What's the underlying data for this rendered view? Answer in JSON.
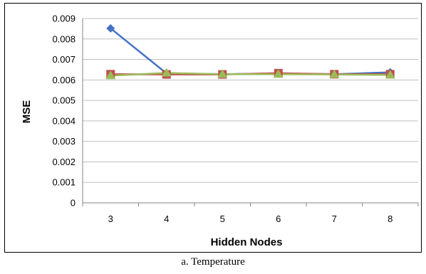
{
  "caption": "a. Temperature",
  "chart_data": {
    "type": "line",
    "title": "",
    "xlabel": "Hidden Nodes",
    "ylabel": "MSE",
    "categories": [
      "3",
      "4",
      "5",
      "6",
      "7",
      "8"
    ],
    "ylim": [
      0,
      0.009
    ],
    "yticks": [
      "0",
      "0.001",
      "0.002",
      "0.003",
      "0.004",
      "0.005",
      "0.006",
      "0.007",
      "0.008",
      "0.009"
    ],
    "grid": true,
    "legend": "none",
    "series": [
      {
        "color": "#4472C4",
        "marker": "diamond",
        "values": [
          0.00852,
          0.00632,
          0.00628,
          0.00631,
          0.00628,
          0.00637
        ]
      },
      {
        "color": "#C0504D",
        "marker": "square",
        "values": [
          0.00628,
          0.00627,
          0.00627,
          0.00633,
          0.00628,
          0.00628
        ]
      },
      {
        "color": "#9BBB59",
        "marker": "triangle",
        "values": [
          0.00621,
          0.00634,
          0.00628,
          0.00628,
          0.00627,
          0.00624
        ]
      }
    ]
  }
}
